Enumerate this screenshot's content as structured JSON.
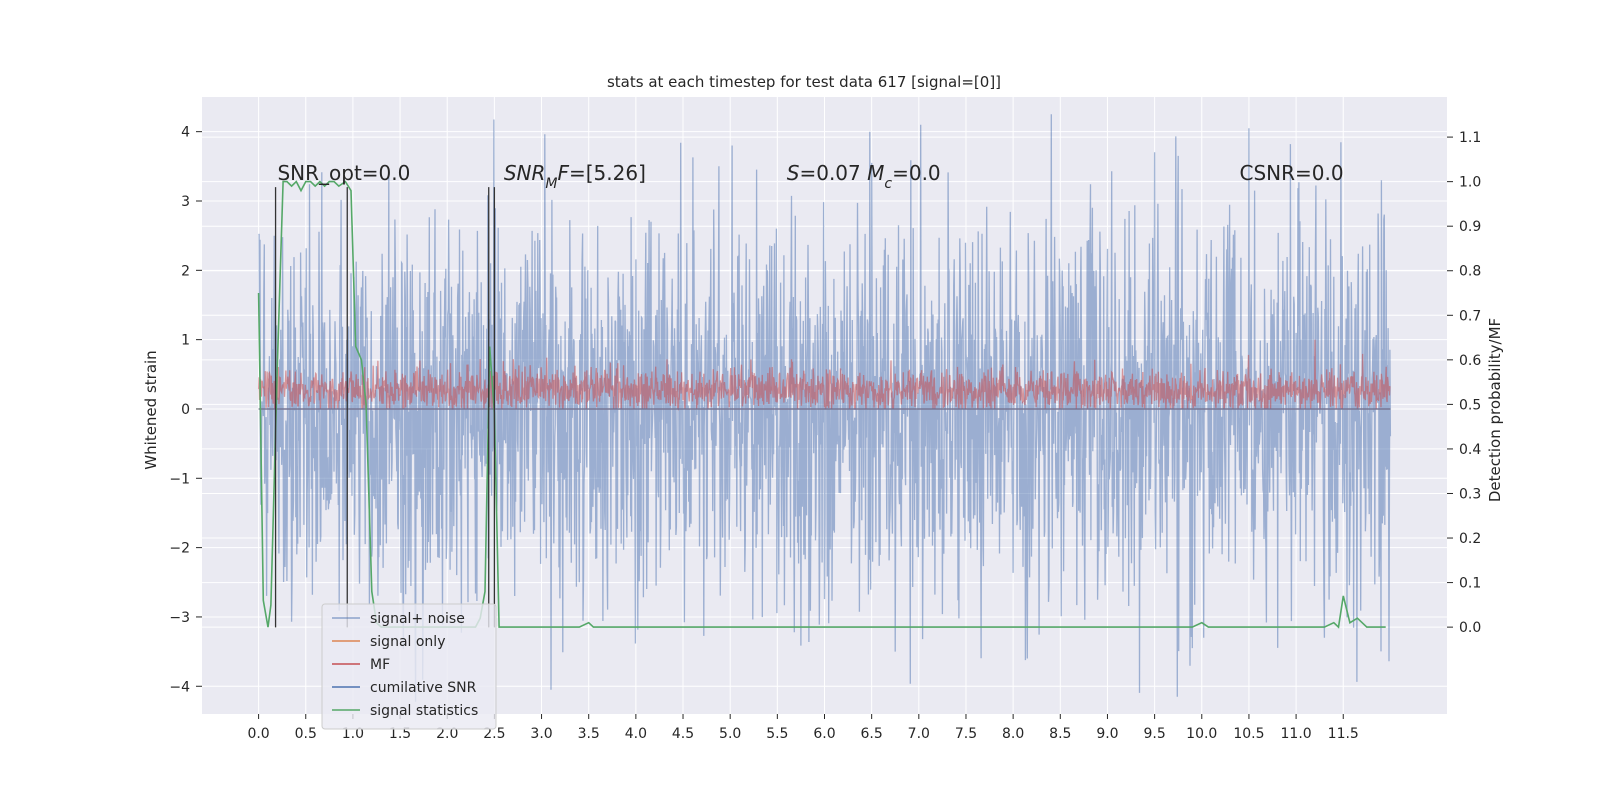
{
  "chart_data": {
    "type": "line",
    "title": "stats at each timestep for test data 617 [signal=[0]]",
    "xlabel": "",
    "ylabel": "Whitened strain",
    "y2label": "Detection probability/MF",
    "xlim": [
      -0.6,
      12.6
    ],
    "ylim": [
      -4.4,
      4.5
    ],
    "y2lim": [
      -0.195,
      1.19
    ],
    "x_ticks": [
      0.0,
      0.5,
      1.0,
      1.5,
      2.0,
      2.5,
      3.0,
      3.5,
      4.0,
      4.5,
      5.0,
      5.5,
      6.0,
      6.5,
      7.0,
      7.5,
      8.0,
      8.5,
      9.0,
      9.5,
      10.0,
      10.5,
      11.0,
      11.5
    ],
    "x_tick_labels": [
      "0.0",
      "0.5",
      "1.0",
      "1.5",
      "2.0",
      "2.5",
      "3.0",
      "3.5",
      "4.0",
      "4.5",
      "5.0",
      "5.5",
      "6.0",
      "6.5",
      "7.0",
      "7.5",
      "8.0",
      "8.5",
      "9.0",
      "9.5",
      "10.0",
      "10.5",
      "11.0",
      "11.5"
    ],
    "y_ticks": [
      -4,
      -3,
      -2,
      -1,
      0,
      1,
      2,
      3,
      4
    ],
    "y_tick_labels": [
      "−4",
      "−3",
      "−2",
      "−1",
      "0",
      "1",
      "2",
      "3",
      "4"
    ],
    "y2_ticks": [
      0.0,
      0.1,
      0.2,
      0.3,
      0.4,
      0.5,
      0.6,
      0.7,
      0.8,
      0.9,
      1.0,
      1.1
    ],
    "y2_tick_labels": [
      "0.0",
      "0.1",
      "0.2",
      "0.3",
      "0.4",
      "0.5",
      "0.6",
      "0.7",
      "0.8",
      "0.9",
      "1.0",
      "1.1"
    ],
    "grid": true,
    "legend_position": "lower-left",
    "annotations": [
      {
        "text": "SNR_opt=0.0",
        "x": 0.2,
        "y": 3.3
      },
      {
        "text": "SNR_MF=[5.26]",
        "x": 2.6,
        "y": 3.3
      },
      {
        "text": "S=0.07   M_c=0.0",
        "x": 5.6,
        "y": 3.3
      },
      {
        "text": "CSNR=0.0",
        "x": 10.4,
        "y": 3.3
      }
    ],
    "series": [
      {
        "name": "signal+ noise",
        "color": "#4c72b0",
        "style": "noise",
        "axis": "left",
        "x_range": [
          0.0,
          12.0
        ],
        "typical_range": [
          -2.3,
          2.3
        ],
        "peaks": [
          {
            "x": 7.02,
            "y": 4.1
          },
          {
            "x": 10.5,
            "y": 4.05
          },
          {
            "x": 5.02,
            "y": 3.8
          },
          {
            "x": 9.75,
            "y": 3.65
          },
          {
            "x": 6.5,
            "y": 3.55
          },
          {
            "x": 3.1,
            "y": -4.05
          },
          {
            "x": 6.75,
            "y": -3.5
          },
          {
            "x": 8.15,
            "y": -3.6
          },
          {
            "x": 9.9,
            "y": -3.45
          },
          {
            "x": 10.02,
            "y": -3.3
          },
          {
            "x": 11.3,
            "y": -3.3
          }
        ]
      },
      {
        "name": "signal only",
        "color": "#dd8452",
        "style": "flat",
        "axis": "left",
        "x": [
          0.0,
          12.0
        ],
        "y": [
          0.0,
          0.0
        ]
      },
      {
        "name": "MF",
        "color": "#c44e52",
        "style": "noise",
        "axis": "left",
        "x_range": [
          0.0,
          12.0
        ],
        "typical_range": [
          0.0,
          0.55
        ],
        "peaks": [
          {
            "x": 11.2,
            "y": 1.0
          },
          {
            "x": 2.7,
            "y": 0.72
          }
        ]
      },
      {
        "name": "cumilative SNR",
        "color": "#4c72b0",
        "style": "flat",
        "axis": "left",
        "x": [
          0.0,
          12.0
        ],
        "y": [
          0.0,
          0.0
        ]
      },
      {
        "name": "signal statistics",
        "color": "#55a868",
        "style": "line",
        "axis": "right",
        "x": [
          0.0,
          0.05,
          0.1,
          0.13,
          0.2,
          0.26,
          0.3,
          0.35,
          0.4,
          0.45,
          0.5,
          0.55,
          0.6,
          0.65,
          0.7,
          0.75,
          0.8,
          0.85,
          0.92,
          0.98,
          1.03,
          1.09,
          1.14,
          1.2,
          1.25,
          1.3,
          1.5,
          2.0,
          2.2,
          2.3,
          2.35,
          2.4,
          2.45,
          2.5,
          2.55,
          3.0,
          3.4,
          3.5,
          3.55,
          4.0,
          5.0,
          5.5,
          5.55,
          6.0,
          6.15,
          6.2,
          7.0,
          7.5,
          7.65,
          8.0,
          9.0,
          9.5,
          9.9,
          10.0,
          10.07,
          10.5,
          11.0,
          11.3,
          11.4,
          11.45,
          11.5,
          11.57,
          11.65,
          11.75,
          11.95
        ],
        "y": [
          0.75,
          0.06,
          0.0,
          0.05,
          0.6,
          1.0,
          1.0,
          0.99,
          1.0,
          0.98,
          1.0,
          1.0,
          0.99,
          1.0,
          0.99,
          1.0,
          1.0,
          0.99,
          1.0,
          0.98,
          0.63,
          0.6,
          0.5,
          0.08,
          0.01,
          0.0,
          0.0,
          0.0,
          0.0,
          0.0,
          0.02,
          0.08,
          0.63,
          0.48,
          0.0,
          0.0,
          0.0,
          0.01,
          0.0,
          0.0,
          0.0,
          0.0,
          0.0,
          0.0,
          0.0,
          0.0,
          0.0,
          0.0,
          0.0,
          0.0,
          0.0,
          0.0,
          0.0,
          0.01,
          0.0,
          0.0,
          0.0,
          0.0,
          0.01,
          0.0,
          0.07,
          0.01,
          0.02,
          0.0,
          0.0
        ]
      }
    ],
    "vertical_lines": [
      0.18,
      0.94,
      2.44,
      2.5
    ],
    "vertical_line_color": "#333333"
  }
}
